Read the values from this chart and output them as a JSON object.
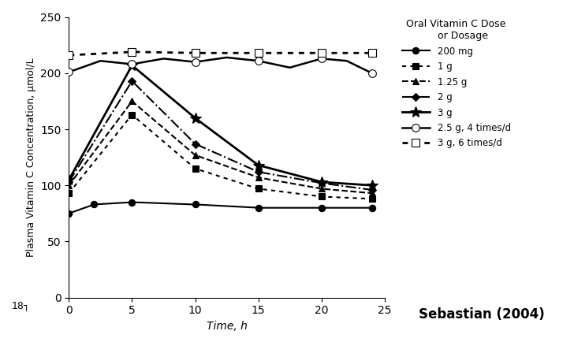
{
  "title": "",
  "xlabel": "Time, h",
  "ylabel": "Plasma Vitamin C Concentration, μmol/L",
  "xlim": [
    0,
    25
  ],
  "ylim": [
    0,
    250
  ],
  "xticks": [
    0,
    5,
    10,
    15,
    20,
    25
  ],
  "yticks": [
    0,
    50,
    100,
    150,
    200,
    250
  ],
  "legend_title": "Oral Vitamin C Dose\n    or Dosage",
  "annotation": "Sebastian (2004)",
  "annotation2": "18┐",
  "series": [
    {
      "label": "200 mg",
      "x": [
        0,
        2,
        5,
        10,
        15,
        20,
        24
      ],
      "y": [
        75,
        83,
        85,
        83,
        80,
        80,
        80
      ],
      "color": "black",
      "linestyle": "-",
      "marker": "o",
      "markerfacecolor": "black",
      "markersize": 6,
      "linewidth": 1.5,
      "smooth": true
    },
    {
      "label": "1 g",
      "x": [
        0,
        5,
        10,
        15,
        20,
        24
      ],
      "y": [
        93,
        163,
        115,
        97,
        90,
        88
      ],
      "color": "black",
      "linestyle": "dotted",
      "marker": "s",
      "markerfacecolor": "black",
      "markersize": 6,
      "linewidth": 1.5,
      "smooth": true
    },
    {
      "label": "1.25 g",
      "x": [
        0,
        5,
        10,
        15,
        20,
        24
      ],
      "y": [
        100,
        175,
        127,
        107,
        97,
        93
      ],
      "color": "black",
      "linestyle": "--",
      "marker": "^",
      "markerfacecolor": "black",
      "markersize": 6,
      "linewidth": 1.5,
      "smooth": true
    },
    {
      "label": "2 g",
      "x": [
        0,
        5,
        10,
        15,
        20,
        24
      ],
      "y": [
        103,
        193,
        137,
        112,
        102,
        96
      ],
      "color": "black",
      "linestyle": "-.",
      "marker": "D",
      "markerfacecolor": "black",
      "markersize": 5,
      "linewidth": 1.5,
      "smooth": true
    },
    {
      "label": "3 g",
      "x": [
        0,
        5,
        10,
        15,
        20,
        24
      ],
      "y": [
        105,
        207,
        160,
        118,
        103,
        100
      ],
      "color": "black",
      "linestyle": "-",
      "marker": "*",
      "markerfacecolor": "black",
      "markersize": 10,
      "linewidth": 2.0,
      "smooth": true
    },
    {
      "label": "2.5 g, 4 times/d",
      "x": [
        0,
        2.5,
        5,
        7.5,
        10,
        12.5,
        15,
        17.5,
        20,
        22,
        24
      ],
      "y": [
        201,
        211,
        208,
        213,
        210,
        214,
        211,
        205,
        213,
        211,
        200
      ],
      "color": "black",
      "linestyle": "-",
      "marker": "o",
      "markerfacecolor": "white",
      "markersize": 7,
      "linewidth": 1.8,
      "smooth": false,
      "marker_x": [
        0,
        5,
        10,
        15,
        20,
        24
      ],
      "marker_y": [
        201,
        208,
        210,
        211,
        213,
        200
      ]
    },
    {
      "label": "3 g, 6 times/d",
      "x": [
        0,
        5,
        10,
        15,
        20,
        24
      ],
      "y": [
        216,
        219,
        218,
        218,
        218,
        218
      ],
      "color": "black",
      "linestyle": "dotted",
      "marker": "s",
      "markerfacecolor": "white",
      "markersize": 7,
      "linewidth": 2.0,
      "smooth": true
    }
  ]
}
